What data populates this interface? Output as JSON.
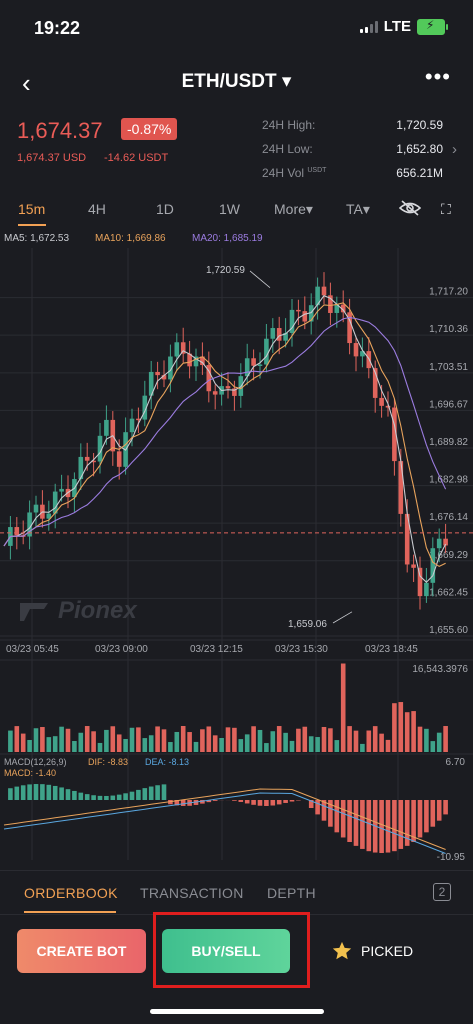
{
  "status": {
    "time": "19:22",
    "network": "LTE"
  },
  "header": {
    "title": "ETH/USDT ▾",
    "back_icon": "‹",
    "more_icon": "•••"
  },
  "price": {
    "last": "1,674.37",
    "change_pct": "-0.87%",
    "usd": "1,674.37 USD",
    "change_abs": "-14.62 USDT"
  },
  "stats": {
    "high_label": "24H High:",
    "high_value": "1,720.59",
    "low_label": "24H Low:",
    "low_value": "1,652.80",
    "vol_label": "24H Vol",
    "vol_unit": "USDT",
    "vol_value": "656.21M"
  },
  "timeframes": {
    "t15m": "15m",
    "t4h": "4H",
    "t1d": "1D",
    "t1w": "1W",
    "more": "More▾",
    "ta": "TA▾"
  },
  "ma": {
    "ma5": "MA5: 1,672.53",
    "ma10": "MA10: 1,669.86",
    "ma20": "MA20: 1,685.19"
  },
  "chart_data": {
    "type": "candlestick",
    "price_axis": [
      "1,717.20",
      "1,710.36",
      "1,703.51",
      "1,696.67",
      "1,689.82",
      "1,682.98",
      "1,676.14",
      "1,669.29",
      "1,662.45",
      "1,655.60"
    ],
    "time_axis": [
      "03/23 05:45",
      "03/23 09:00",
      "03/23 12:15",
      "03/23 15:30",
      "03/23 18:45"
    ],
    "high_label": "1,720.59",
    "low_label": "1,659.06",
    "current_price": 1674.37,
    "volume_max_label": "16,543.3976",
    "macd_label": "MACD(12,26,9)",
    "macd_dif": "DIF: -8.83",
    "macd_dea": "DEA: -8.13",
    "macd_val": "MACD: -1.40",
    "macd_axis_top": "6.70",
    "macd_axis_bottom": "-10.95",
    "watermark": "Pionex"
  },
  "bottom_tabs": {
    "orderbook": "ORDERBOOK",
    "transaction": "TRANSACTION",
    "depth": "DEPTH",
    "count": "2"
  },
  "actions": {
    "create_bot": "CREATE BOT",
    "buy_sell": "BUY/SELL",
    "picked": "PICKED"
  },
  "colors": {
    "up": "#3fa38a",
    "down": "#e0645c",
    "accent": "#f2a154",
    "ma5": "#c9cbd0",
    "ma10": "#e8a35c",
    "ma20": "#9b7ce0"
  }
}
